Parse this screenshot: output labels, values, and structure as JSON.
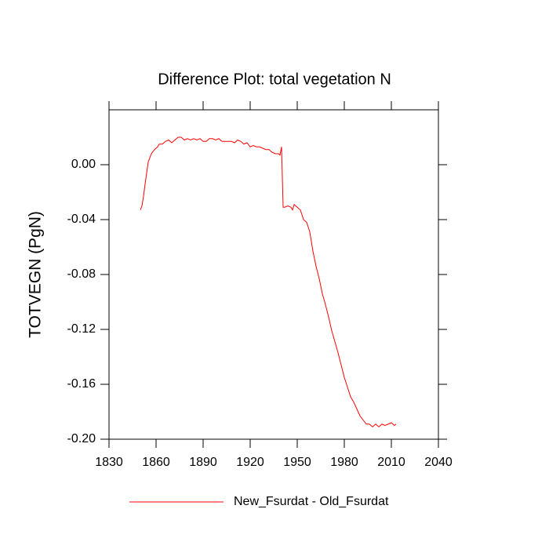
{
  "chart_data": {
    "type": "line",
    "title": "Difference Plot: total vegetation N",
    "y_label": "TOTVEGN  (PgN)",
    "x": [
      1850,
      1851,
      1852,
      1853,
      1854,
      1855,
      1857,
      1859,
      1861,
      1862,
      1864,
      1866,
      1868,
      1870,
      1872,
      1874,
      1876,
      1878,
      1880,
      1882,
      1884,
      1886,
      1888,
      1890,
      1892,
      1894,
      1896,
      1898,
      1900,
      1902,
      1904,
      1906,
      1908,
      1910,
      1912,
      1914,
      1916,
      1918,
      1920,
      1922,
      1924,
      1926,
      1928,
      1930,
      1932,
      1934,
      1936,
      1938,
      1939,
      1940,
      1941,
      1942,
      1944,
      1946,
      1947,
      1948,
      1950,
      1952,
      1954,
      1956,
      1958,
      1960,
      1962,
      1964,
      1966,
      1968,
      1970,
      1972,
      1974,
      1976,
      1978,
      1980,
      1982,
      1984,
      1986,
      1988,
      1990,
      1992,
      1994,
      1996,
      1998,
      2000,
      2002,
      2004,
      2006,
      2008,
      2010,
      2012,
      2013
    ],
    "series": [
      {
        "name": "New_Fsurdat - Old_Fsurdat",
        "color": "#ff0000",
        "values": [
          -0.033,
          -0.03,
          -0.023,
          -0.014,
          -0.006,
          0.002,
          0.008,
          0.011,
          0.013,
          0.015,
          0.015,
          0.017,
          0.018,
          0.016,
          0.018,
          0.02,
          0.02,
          0.018,
          0.019,
          0.018,
          0.019,
          0.018,
          0.019,
          0.017,
          0.017,
          0.019,
          0.019,
          0.018,
          0.019,
          0.017,
          0.017,
          0.017,
          0.017,
          0.016,
          0.018,
          0.017,
          0.015,
          0.016,
          0.013,
          0.014,
          0.013,
          0.013,
          0.012,
          0.011,
          0.011,
          0.009,
          0.008,
          0.008,
          0.007,
          0.013,
          -0.031,
          -0.031,
          -0.03,
          -0.031,
          -0.033,
          -0.029,
          -0.031,
          -0.033,
          -0.04,
          -0.042,
          -0.049,
          -0.063,
          -0.074,
          -0.083,
          -0.094,
          -0.102,
          -0.111,
          -0.121,
          -0.129,
          -0.137,
          -0.146,
          -0.155,
          -0.162,
          -0.169,
          -0.173,
          -0.178,
          -0.183,
          -0.186,
          -0.189,
          -0.189,
          -0.191,
          -0.189,
          -0.191,
          -0.189,
          -0.19,
          -0.189,
          -0.188,
          -0.19,
          -0.189
        ]
      }
    ],
    "xlim": [
      1830,
      2040
    ],
    "xticks": [
      1830,
      1860,
      1890,
      1920,
      1950,
      1980,
      2010,
      2040
    ],
    "ylim": [
      -0.2,
      0.04
    ],
    "yticks": [
      {
        "value": -0.2,
        "label": "-0.20"
      },
      {
        "value": -0.16,
        "label": "-0.16"
      },
      {
        "value": -0.12,
        "label": "-0.12"
      },
      {
        "value": -0.08,
        "label": "-0.08"
      },
      {
        "value": -0.04,
        "label": "-0.04"
      },
      {
        "value": 0,
        "label": "0.00"
      }
    ],
    "grid": false
  }
}
